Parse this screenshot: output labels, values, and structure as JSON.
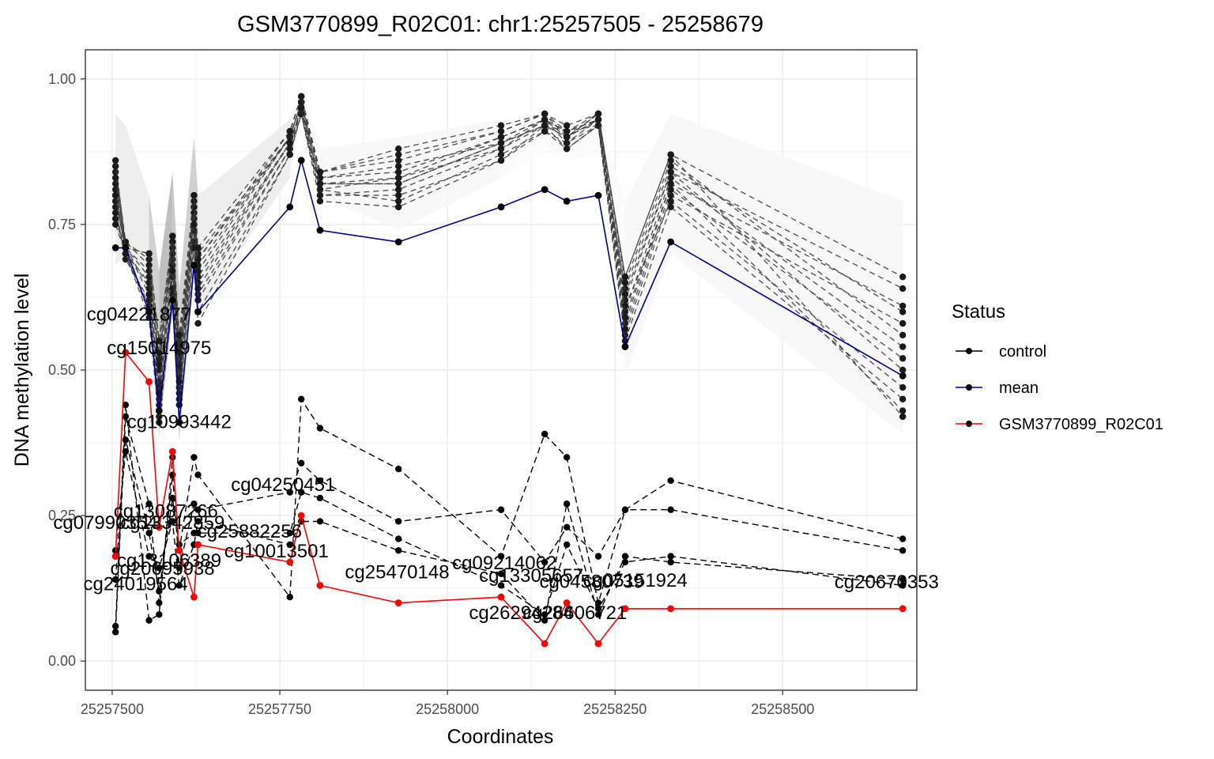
{
  "chart_data": {
    "type": "line",
    "title": "GSM3770899_R02C01: chr1:25257505 - 25258679",
    "xlabel": "Coordinates",
    "ylabel": "DNA methylation level",
    "xlim": [
      25257460,
      25258700
    ],
    "ylim": [
      -0.05,
      1.05
    ],
    "x_ticks": [
      25257500,
      25257750,
      25258000,
      25258250,
      25258500
    ],
    "x_tick_labels": [
      "25257500",
      "25257750",
      "25258000",
      "25258250",
      "25258500"
    ],
    "y_ticks": [
      0,
      0.25,
      0.5,
      0.75,
      1.0
    ],
    "y_tick_labels": [
      "0.00",
      "0.25",
      "0.50",
      "0.75",
      "1.00"
    ],
    "grid": true,
    "legend_position": "right",
    "legend": {
      "title": "Status",
      "items": [
        {
          "label": "control",
          "color": "#000000"
        },
        {
          "label": "mean",
          "color": "#00008b"
        },
        {
          "label": "GSM3770899_R02C01",
          "color": "#ff0000"
        }
      ]
    },
    "x": [
      25257505,
      25257520,
      25257555,
      25257570,
      25257590,
      25257600,
      25257622,
      25257628,
      25257765,
      25257782,
      25257810,
      25257927,
      25258080,
      25258145,
      25258178,
      25258225,
      25258265,
      25258333,
      25258679
    ],
    "series": [
      {
        "name": "mean",
        "color": "#00008b",
        "values": [
          0.71,
          0.71,
          0.6,
          0.43,
          0.62,
          0.41,
          0.68,
          0.6,
          0.78,
          0.86,
          0.74,
          0.72,
          0.78,
          0.81,
          0.79,
          0.8,
          0.54,
          0.72,
          0.49
        ]
      },
      {
        "name": "GSM3770899_R02C01",
        "color": "#ff0000",
        "values": [
          0.18,
          0.53,
          0.48,
          0.23,
          0.36,
          0.19,
          0.11,
          0.2,
          0.17,
          0.25,
          0.13,
          0.1,
          0.11,
          0.03,
          0.1,
          0.03,
          0.09,
          0.09,
          0.09
        ]
      }
    ],
    "control_upper": [
      [
        0.84,
        0.71,
        0.7,
        0.55,
        0.73,
        0.55,
        0.8,
        0.7,
        0.9,
        0.96,
        0.84,
        0.87,
        0.91,
        0.94,
        0.92,
        0.94,
        0.66,
        0.87,
        0.66
      ],
      [
        0.8,
        0.7,
        0.65,
        0.48,
        0.69,
        0.5,
        0.77,
        0.66,
        0.89,
        0.95,
        0.82,
        0.83,
        0.9,
        0.93,
        0.91,
        0.93,
        0.62,
        0.84,
        0.64
      ],
      [
        0.78,
        0.69,
        0.62,
        0.45,
        0.66,
        0.47,
        0.75,
        0.63,
        0.88,
        0.95,
        0.8,
        0.81,
        0.88,
        0.92,
        0.9,
        0.93,
        0.58,
        0.82,
        0.61
      ],
      [
        0.82,
        0.71,
        0.67,
        0.52,
        0.71,
        0.52,
        0.78,
        0.68,
        0.9,
        0.96,
        0.83,
        0.85,
        0.89,
        0.93,
        0.91,
        0.92,
        0.64,
        0.85,
        0.6
      ],
      [
        0.76,
        0.7,
        0.6,
        0.42,
        0.63,
        0.45,
        0.72,
        0.6,
        0.87,
        0.94,
        0.81,
        0.79,
        0.87,
        0.91,
        0.89,
        0.92,
        0.56,
        0.8,
        0.58
      ],
      [
        0.85,
        0.72,
        0.69,
        0.5,
        0.72,
        0.54,
        0.79,
        0.69,
        0.91,
        0.97,
        0.84,
        0.86,
        0.91,
        0.94,
        0.9,
        0.94,
        0.65,
        0.86,
        0.56
      ],
      [
        0.79,
        0.71,
        0.64,
        0.47,
        0.68,
        0.49,
        0.76,
        0.65,
        0.89,
        0.95,
        0.82,
        0.82,
        0.89,
        0.92,
        0.91,
        0.93,
        0.6,
        0.83,
        0.54
      ],
      [
        0.77,
        0.7,
        0.61,
        0.44,
        0.64,
        0.46,
        0.74,
        0.62,
        0.88,
        0.94,
        0.8,
        0.8,
        0.86,
        0.92,
        0.88,
        0.92,
        0.57,
        0.81,
        0.52
      ],
      [
        0.81,
        0.71,
        0.66,
        0.51,
        0.7,
        0.51,
        0.77,
        0.67,
        0.9,
        0.96,
        0.83,
        0.84,
        0.9,
        0.93,
        0.89,
        0.93,
        0.63,
        0.84,
        0.5
      ],
      [
        0.83,
        0.72,
        0.68,
        0.53,
        0.72,
        0.53,
        0.78,
        0.69,
        0.9,
        0.96,
        0.81,
        0.83,
        0.88,
        0.93,
        0.9,
        0.94,
        0.61,
        0.79,
        0.47
      ],
      [
        0.75,
        0.7,
        0.59,
        0.41,
        0.62,
        0.44,
        0.71,
        0.58,
        0.87,
        0.94,
        0.79,
        0.78,
        0.86,
        0.91,
        0.88,
        0.92,
        0.55,
        0.78,
        0.45
      ],
      [
        0.8,
        0.71,
        0.63,
        0.46,
        0.67,
        0.48,
        0.75,
        0.64,
        0.89,
        0.95,
        0.82,
        0.82,
        0.89,
        0.92,
        0.9,
        0.93,
        0.59,
        0.82,
        0.43
      ],
      [
        0.86,
        0.71,
        0.7,
        0.55,
        0.73,
        0.56,
        0.8,
        0.71,
        0.91,
        0.97,
        0.84,
        0.88,
        0.92,
        0.94,
        0.91,
        0.94,
        0.66,
        0.87,
        0.42
      ]
    ],
    "control_lower": [
      [
        0.06,
        0.44,
        0.07,
        0.08,
        0.35,
        0.19,
        0.35,
        0.32,
        0.11,
        0.45,
        0.4,
        0.33,
        0.18,
        0.39,
        0.35,
        0.1,
        0.26,
        0.31,
        0.21
      ],
      [
        0.05,
        0.42,
        0.27,
        0.1,
        0.32,
        0.16,
        0.27,
        0.26,
        0.29,
        0.34,
        0.31,
        0.24,
        0.26,
        0.17,
        0.23,
        0.18,
        0.26,
        0.26,
        0.19
      ],
      [
        0.19,
        0.36,
        0.18,
        0.16,
        0.24,
        0.13,
        0.2,
        0.24,
        0.2,
        0.24,
        0.24,
        0.19,
        0.15,
        0.07,
        0.27,
        0.08,
        0.18,
        0.17,
        0.14
      ],
      [
        0.14,
        0.38,
        0.22,
        0.12,
        0.28,
        0.2,
        0.22,
        0.22,
        0.22,
        0.29,
        0.28,
        0.21,
        0.13,
        0.08,
        0.2,
        0.09,
        0.17,
        0.18,
        0.13
      ]
    ],
    "annotations": [
      {
        "text": "cg04221877",
        "x": 25257540,
        "y": 0.585
      },
      {
        "text": "cg15014975",
        "x": 25257570,
        "y": 0.527
      },
      {
        "text": "cg10993442",
        "x": 25257600,
        "y": 0.4
      },
      {
        "text": "cg04250451",
        "x": 25257755,
        "y": 0.292
      },
      {
        "text": "cg13087266",
        "x": 25257580,
        "y": 0.247
      },
      {
        "text": "cg07990354",
        "x": 25257490,
        "y": 0.227
      },
      {
        "text": "cg13342859",
        "x": 25257590,
        "y": 0.227
      },
      {
        "text": "cg25882256",
        "x": 25257705,
        "y": 0.212
      },
      {
        "text": "cg10013501",
        "x": 25257745,
        "y": 0.178
      },
      {
        "text": "cg13106389",
        "x": 25257585,
        "y": 0.162
      },
      {
        "text": "cg20695938",
        "x": 25257575,
        "y": 0.148
      },
      {
        "text": "cg09214062",
        "x": 25258085,
        "y": 0.158
      },
      {
        "text": "cg25470148",
        "x": 25257925,
        "y": 0.142
      },
      {
        "text": "cg13305657",
        "x": 25258125,
        "y": 0.136
      },
      {
        "text": "cg24019564",
        "x": 25257535,
        "y": 0.122
      },
      {
        "text": "cg04580739",
        "x": 25258215,
        "y": 0.126
      },
      {
        "text": "cg05151924",
        "x": 25258280,
        "y": 0.128
      },
      {
        "text": "cg20670353",
        "x": 25258655,
        "y": 0.125
      },
      {
        "text": "cg26294284",
        "x": 25258110,
        "y": 0.072
      },
      {
        "text": "cg26606721",
        "x": 25258190,
        "y": 0.072
      }
    ]
  }
}
